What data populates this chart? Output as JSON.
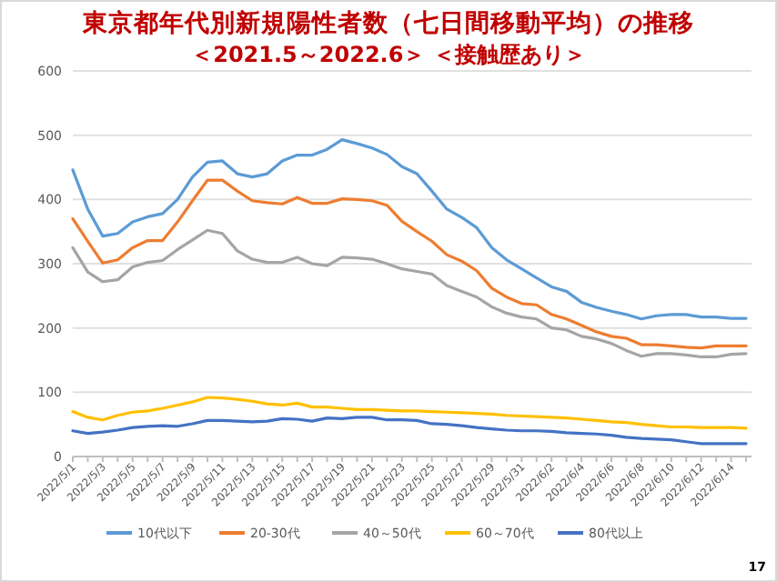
{
  "chart_data": {
    "type": "line",
    "title": "東京都年代別新規陽性者数（七日間移動平均）の推移",
    "subtitle": "＜2021.5～2022.6＞ ＜接触歴あり＞",
    "categories": [
      "2022/5/1",
      null,
      "2022/5/3",
      null,
      "2022/5/5",
      null,
      "2022/5/7",
      null,
      "2022/5/9",
      null,
      "2022/5/11",
      null,
      "2022/5/13",
      null,
      "2022/5/15",
      null,
      "2022/5/17",
      null,
      "2022/5/19",
      null,
      "2022/5/21",
      null,
      "2022/5/23",
      null,
      "2022/5/25",
      null,
      "2022/5/27",
      null,
      "2022/5/29",
      null,
      "2022/5/31",
      null,
      "2022/6/2",
      null,
      "2022/6/4",
      null,
      "2022/6/6",
      null,
      "2022/6/8",
      null,
      "2022/6/10",
      null,
      "2022/6/12",
      null,
      "2022/6/14",
      null
    ],
    "series": [
      {
        "name": "10代以下",
        "color": "#5b9bd5",
        "values": [
          446,
          385,
          343,
          347,
          365,
          373,
          378,
          400,
          435,
          458,
          460,
          440,
          435,
          440,
          460,
          469,
          469,
          478,
          493,
          487,
          480,
          470,
          451,
          440,
          413,
          385,
          372,
          356,
          325,
          306,
          292,
          278,
          264,
          257,
          240,
          232,
          226,
          221,
          214,
          219,
          221,
          221,
          217,
          217,
          215,
          215
        ]
      },
      {
        "name": "20-30代",
        "color": "#ed7d31",
        "values": [
          370,
          335,
          301,
          306,
          325,
          336,
          336,
          365,
          398,
          430,
          430,
          413,
          398,
          395,
          393,
          403,
          394,
          394,
          401,
          400,
          398,
          391,
          366,
          350,
          335,
          314,
          304,
          289,
          262,
          248,
          238,
          236,
          221,
          214,
          204,
          194,
          187,
          184,
          174,
          174,
          172,
          170,
          169,
          172,
          172,
          172
        ]
      },
      {
        "name": "40～50代",
        "color": "#a5a5a5",
        "values": [
          325,
          287,
          272,
          275,
          295,
          302,
          305,
          322,
          337,
          352,
          347,
          320,
          307,
          302,
          302,
          310,
          300,
          297,
          310,
          309,
          307,
          300,
          292,
          288,
          284,
          266,
          257,
          248,
          233,
          223,
          217,
          214,
          200,
          197,
          187,
          183,
          176,
          165,
          156,
          160,
          160,
          158,
          155,
          155,
          159,
          160
        ]
      },
      {
        "name": "60～70代",
        "color": "#ffc000",
        "values": [
          70,
          61,
          57,
          64,
          69,
          71,
          75,
          80,
          85,
          92,
          91,
          89,
          86,
          82,
          80,
          83,
          77,
          77,
          75,
          73,
          73,
          72,
          71,
          71,
          70,
          69,
          68,
          67,
          66,
          64,
          63,
          62,
          61,
          60,
          58,
          56,
          54,
          53,
          50,
          48,
          46,
          46,
          45,
          45,
          45,
          44
        ]
      },
      {
        "name": "80代以上",
        "color": "#4472c4",
        "values": [
          40,
          36,
          38,
          41,
          45,
          47,
          48,
          47,
          51,
          56,
          56,
          55,
          54,
          55,
          59,
          58,
          55,
          60,
          59,
          61,
          61,
          57,
          57,
          56,
          51,
          50,
          48,
          45,
          43,
          41,
          40,
          40,
          39,
          37,
          36,
          35,
          33,
          30,
          28,
          27,
          26,
          23,
          20,
          20,
          20,
          20
        ]
      }
    ],
    "ylim": [
      0,
      600
    ],
    "yticks": [
      0,
      100,
      200,
      300,
      400,
      500,
      600
    ],
    "grid": "y",
    "legend": "bottom",
    "line_style": "solid",
    "marker": "none",
    "annotations": [
      "17"
    ]
  }
}
